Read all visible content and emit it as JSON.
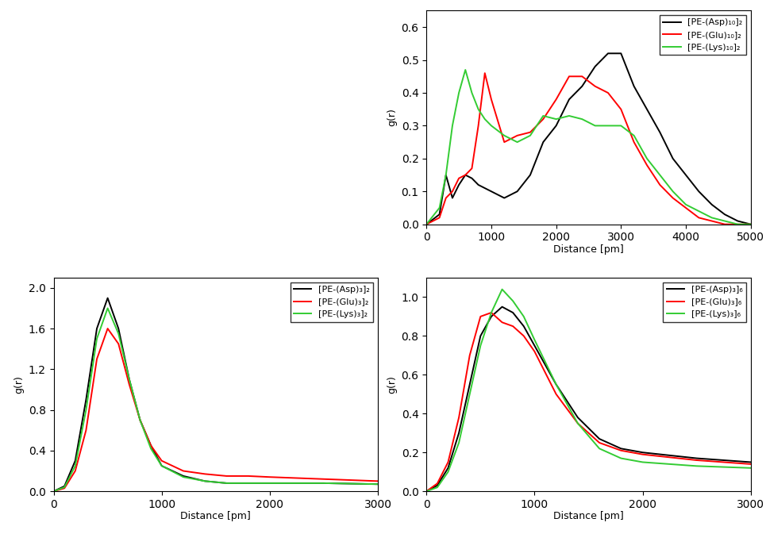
{
  "chart_data": [
    {
      "type": "line",
      "x_label": "Distance [pm]",
      "y_label": "g(r)",
      "x": [
        0,
        200,
        300,
        400,
        500,
        600,
        700,
        800,
        900,
        1000,
        1200,
        1400,
        1600,
        1800,
        2000,
        2200,
        2400,
        2600,
        2800,
        3000,
        3200,
        3400,
        3600,
        3800,
        4000,
        4200,
        4400,
        4600,
        4800,
        5000
      ],
      "series": [
        {
          "name": "[PE-(Asp)₁₀]₂",
          "color": "#000000",
          "values": [
            0,
            0.03,
            0.15,
            0.08,
            0.12,
            0.15,
            0.14,
            0.12,
            0.11,
            0.1,
            0.08,
            0.1,
            0.15,
            0.25,
            0.3,
            0.38,
            0.42,
            0.48,
            0.52,
            0.52,
            0.42,
            0.35,
            0.28,
            0.2,
            0.15,
            0.1,
            0.06,
            0.03,
            0.01,
            0.0
          ]
        },
        {
          "name": "[PE-(Glu)₁₀]₂",
          "color": "#ff0000",
          "values": [
            0,
            0.02,
            0.08,
            0.1,
            0.14,
            0.15,
            0.17,
            0.3,
            0.46,
            0.38,
            0.25,
            0.27,
            0.28,
            0.32,
            0.38,
            0.45,
            0.45,
            0.42,
            0.4,
            0.35,
            0.25,
            0.18,
            0.12,
            0.08,
            0.05,
            0.02,
            0.01,
            0.0,
            0.0,
            0.0
          ]
        },
        {
          "name": "[PE-(Lys)₁₀]₂",
          "color": "#33cc33",
          "values": [
            0,
            0.05,
            0.15,
            0.3,
            0.4,
            0.47,
            0.4,
            0.35,
            0.32,
            0.3,
            0.27,
            0.25,
            0.27,
            0.33,
            0.32,
            0.33,
            0.32,
            0.3,
            0.3,
            0.3,
            0.27,
            0.2,
            0.15,
            0.1,
            0.06,
            0.04,
            0.02,
            0.01,
            0.0,
            0.0
          ]
        }
      ],
      "xlim": [
        0,
        5000
      ],
      "xticks": [
        0,
        1000,
        2000,
        3000,
        4000,
        5000
      ],
      "ylim": [
        0,
        0.65
      ],
      "yticks": [
        {
          "value": 0,
          "label": "0.0"
        },
        0.1,
        0.2,
        0.3,
        0.4,
        0.5,
        0.6
      ],
      "legend": "upper right"
    },
    {
      "type": "line",
      "x_label": "Distance [pm]",
      "y_label": "g(r)",
      "x": [
        0,
        100,
        200,
        300,
        400,
        500,
        600,
        700,
        800,
        900,
        1000,
        1200,
        1400,
        1600,
        1800,
        2000,
        2500,
        3000
      ],
      "series": [
        {
          "name": "[PE-(Asp)₃]₂",
          "color": "#000000",
          "values": [
            0,
            0.05,
            0.3,
            0.9,
            1.6,
            1.9,
            1.6,
            1.1,
            0.7,
            0.45,
            0.25,
            0.15,
            0.1,
            0.08,
            0.08,
            0.08,
            0.08,
            0.07
          ]
        },
        {
          "name": "[PE-(Glu)₃]₂",
          "color": "#ff0000",
          "values": [
            0,
            0.03,
            0.2,
            0.6,
            1.3,
            1.6,
            1.45,
            1.05,
            0.7,
            0.45,
            0.3,
            0.2,
            0.17,
            0.15,
            0.15,
            0.14,
            0.12,
            0.1
          ]
        },
        {
          "name": "[PE-(Lys)₃]₂",
          "color": "#33cc33",
          "values": [
            0,
            0.04,
            0.25,
            0.8,
            1.5,
            1.8,
            1.55,
            1.1,
            0.7,
            0.42,
            0.25,
            0.14,
            0.1,
            0.08,
            0.08,
            0.08,
            0.08,
            0.07
          ]
        }
      ],
      "xlim": [
        0,
        3000
      ],
      "xticks": [
        0,
        1000,
        2000,
        3000
      ],
      "ylim": [
        0,
        2.1
      ],
      "yticks": [
        {
          "value": 0,
          "label": "0.0"
        },
        0.4,
        0.8,
        1.2,
        1.6,
        {
          "value": 2,
          "label": "2.0"
        }
      ],
      "legend": "upper right"
    },
    {
      "type": "line",
      "x_label": "Distance [pm]",
      "y_label": "g(r)",
      "x": [
        0,
        100,
        200,
        300,
        400,
        500,
        600,
        700,
        800,
        900,
        1000,
        1200,
        1400,
        1600,
        1800,
        2000,
        2500,
        3000
      ],
      "series": [
        {
          "name": "[PE-(Asp)₃]₆",
          "color": "#000000",
          "values": [
            0,
            0.03,
            0.12,
            0.3,
            0.55,
            0.8,
            0.9,
            0.95,
            0.92,
            0.85,
            0.75,
            0.55,
            0.38,
            0.27,
            0.22,
            0.2,
            0.17,
            0.15
          ]
        },
        {
          "name": "[PE-(Glu)₃]₆",
          "color": "#ff0000",
          "values": [
            0,
            0.04,
            0.15,
            0.38,
            0.7,
            0.9,
            0.92,
            0.87,
            0.85,
            0.8,
            0.72,
            0.5,
            0.35,
            0.25,
            0.21,
            0.19,
            0.16,
            0.14
          ]
        },
        {
          "name": "[PE-(Lys)₃]₆",
          "color": "#33cc33",
          "values": [
            0,
            0.02,
            0.1,
            0.25,
            0.5,
            0.75,
            0.92,
            1.04,
            0.98,
            0.9,
            0.78,
            0.55,
            0.35,
            0.22,
            0.17,
            0.15,
            0.13,
            0.12
          ]
        }
      ],
      "xlim": [
        0,
        3000
      ],
      "xticks": [
        0,
        1000,
        2000,
        3000
      ],
      "ylim": [
        0,
        1.1
      ],
      "yticks": [
        {
          "value": 0,
          "label": "0.0"
        },
        0.2,
        0.4,
        0.6,
        0.8,
        {
          "value": 1,
          "label": "1.0"
        }
      ],
      "legend": "upper right"
    }
  ]
}
